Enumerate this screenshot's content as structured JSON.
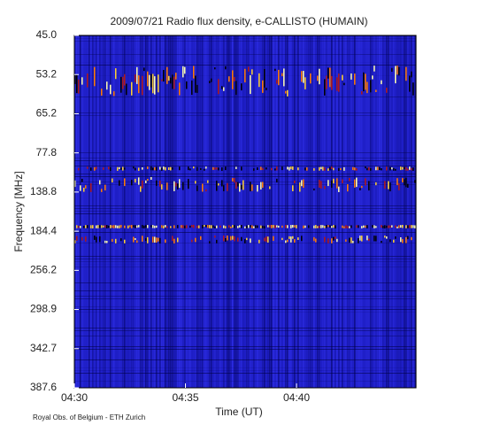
{
  "chart_data": {
    "type": "spectrogram",
    "title": "2009/07/21  Radio flux density, e-CALLISTO (HUMAIN)",
    "x_label": "Time (UT)",
    "y_label": "Frequency [MHz]",
    "xticks": [
      "04:30",
      "04:35",
      "04:40"
    ],
    "yticks": [
      {
        "value": 45,
        "label": "45.0"
      },
      {
        "value": 53.2,
        "label": "53.2"
      },
      {
        "value": 65.2,
        "label": "65.2"
      },
      {
        "value": 77.8,
        "label": "77.8"
      },
      {
        "value": 138.8,
        "label": "138.8"
      },
      {
        "value": 184.4,
        "label": "184.4"
      },
      {
        "value": 256.2,
        "label": "256.2"
      },
      {
        "value": 298.9,
        "label": "298.9"
      },
      {
        "value": 342.7,
        "label": "342.7"
      },
      {
        "value": 387.6,
        "label": "387.6"
      }
    ],
    "credit": "Royal Obs. of Belgium - ETH Zurich"
  }
}
